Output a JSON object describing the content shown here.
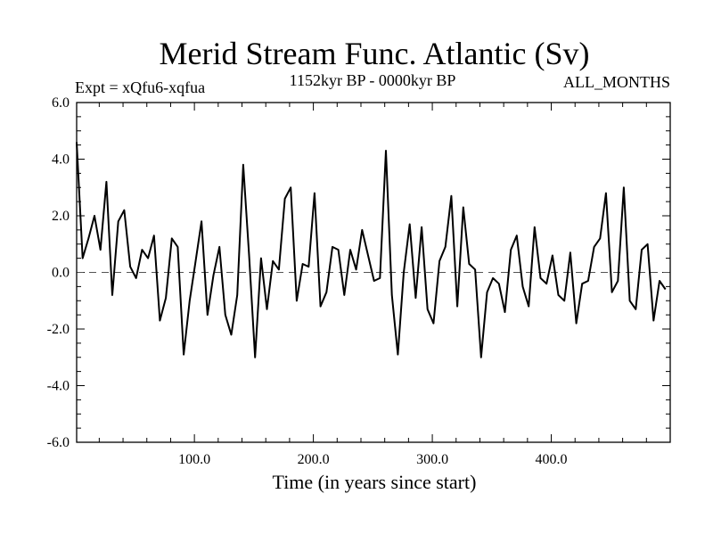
{
  "chart_data": {
    "type": "line",
    "title": "Merid Stream Func. Atlantic (Sv)",
    "subtitle_left": "Expt = xQfu6-xqfua",
    "subtitle_center": "1152kyr BP - 0000kyr BP",
    "subtitle_right": "ALL_MONTHS",
    "xlabel": "Time (in years since start)",
    "ylabel": "",
    "xlim": [
      1,
      500
    ],
    "ylim": [
      -6,
      6
    ],
    "x_ticks": [
      100,
      200,
      300,
      400
    ],
    "x_tick_labels": [
      "100.0",
      "200.0",
      "300.0",
      "400.0"
    ],
    "y_ticks": [
      -6,
      -4,
      -2,
      0,
      2,
      4,
      6
    ],
    "y_tick_labels": [
      "-6.0",
      "-4.0",
      "-2.0",
      "0.0",
      "2.0",
      "4.0",
      "6.0"
    ],
    "zero_line": "dashed",
    "series": [
      {
        "name": "Merid Stream Func. Atlantic",
        "x_start": 1,
        "x_step": 5,
        "values": [
          4.6,
          0.5,
          1.2,
          2.0,
          0.8,
          3.2,
          -0.8,
          1.8,
          2.2,
          0.2,
          -0.2,
          0.8,
          0.5,
          1.3,
          -1.7,
          -0.9,
          1.2,
          0.9,
          -2.9,
          -1.0,
          0.4,
          1.8,
          -1.5,
          -0.1,
          0.9,
          -1.5,
          -2.2,
          -0.8,
          3.8,
          0.6,
          -3.0,
          0.5,
          -1.3,
          0.4,
          0.1,
          2.6,
          3.0,
          -1.0,
          0.3,
          0.2,
          2.8,
          -1.2,
          -0.7,
          0.9,
          0.8,
          -0.8,
          0.8,
          0.1,
          1.5,
          0.6,
          -0.3,
          -0.2,
          4.3,
          -0.8,
          -2.9,
          0.0,
          1.7,
          -0.9,
          1.6,
          -1.3,
          -1.8,
          0.4,
          0.9,
          2.7,
          -1.2,
          2.3,
          0.3,
          0.1,
          -3.0,
          -0.7,
          -0.2,
          -0.4,
          -1.4,
          0.8,
          1.3,
          -0.5,
          -1.2,
          1.6,
          -0.2,
          -0.4,
          0.6,
          -0.8,
          -1.0,
          0.7,
          -1.8,
          -0.4,
          -0.3,
          0.9,
          1.2,
          2.8,
          -0.7,
          -0.3,
          3.0,
          -1.0,
          -1.3,
          0.8,
          1.0,
          -1.7,
          -0.3,
          -0.6
        ]
      }
    ]
  }
}
